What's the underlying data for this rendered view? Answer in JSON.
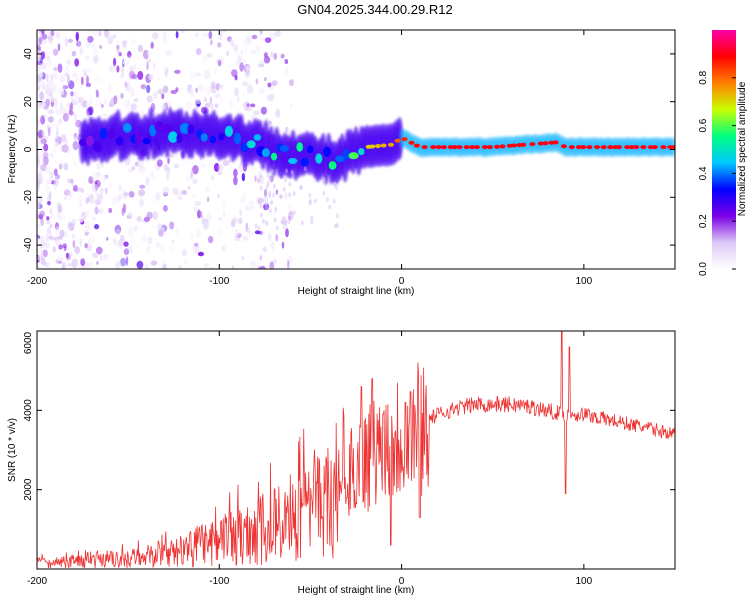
{
  "title": "GN04.2025.344.00.29.R12",
  "chart_data": [
    {
      "type": "heatmap",
      "xlabel": "Height of straight line (km)",
      "ylabel": "Frequency (Hz)",
      "xlim": [
        -200,
        150
      ],
      "ylim": [
        -50,
        50
      ],
      "xticks": [
        -200,
        -100,
        0,
        100
      ],
      "yticks": [
        -40,
        -20,
        0,
        20,
        40
      ],
      "colorbar": {
        "label": "Normalized spectral amplitude",
        "range": [
          0,
          1
        ],
        "ticks": [
          "0.0",
          "0.2",
          "0.4",
          "0.6",
          "0.8"
        ],
        "tick_values": [
          0.0,
          0.2,
          0.4,
          0.6,
          0.8
        ],
        "colormap": [
          "#ffffff",
          "#dcc8f5",
          "#7b00e6",
          "#0000ff",
          "#00c8ff",
          "#00ff80",
          "#c8ff00",
          "#ff8000",
          "#ff0000",
          "#ff00aa"
        ]
      },
      "main_trace": [
        {
          "x": -170,
          "y": 4,
          "amp": 0.3
        },
        {
          "x": -150,
          "y": 6,
          "amp": 0.33
        },
        {
          "x": -130,
          "y": 7,
          "amp": 0.35
        },
        {
          "x": -110,
          "y": 7,
          "amp": 0.38
        },
        {
          "x": -90,
          "y": 5,
          "amp": 0.4
        },
        {
          "x": -70,
          "y": 0,
          "amp": 0.42
        },
        {
          "x": -50,
          "y": -3,
          "amp": 0.45
        },
        {
          "x": -35,
          "y": -5,
          "amp": 0.45
        },
        {
          "x": -28,
          "y": -2,
          "amp": 0.5
        },
        {
          "x": -20,
          "y": 1,
          "amp": 0.7
        },
        {
          "x": -5,
          "y": 2,
          "amp": 0.75
        },
        {
          "x": 0,
          "y": 5,
          "amp": 0.85
        },
        {
          "x": 10,
          "y": 1,
          "amp": 0.9
        },
        {
          "x": 50,
          "y": 1,
          "amp": 0.9
        },
        {
          "x": 85,
          "y": 3,
          "amp": 0.9
        },
        {
          "x": 90,
          "y": 1,
          "amp": 0.9
        },
        {
          "x": 150,
          "y": 1,
          "amp": 0.9
        }
      ]
    },
    {
      "type": "line",
      "xlabel": "Height of straight line (km)",
      "ylabel": "SNR (10 * v/v)",
      "xlim": [
        -200,
        150
      ],
      "ylim": [
        0,
        6000
      ],
      "xticks": [
        -200,
        -100,
        0,
        100
      ],
      "yticks": [
        2000,
        4000,
        6000
      ],
      "color": "#ee3333",
      "trend": {
        "x": [
          -200,
          -150,
          -120,
          -100,
          -80,
          -60,
          -50,
          -40,
          -30,
          -20,
          -10,
          0,
          10,
          20,
          30,
          40,
          50,
          60,
          70,
          80,
          85,
          90,
          95,
          100,
          110,
          120,
          130,
          140,
          150
        ],
        "y": [
          150,
          250,
          450,
          700,
          950,
          1200,
          1500,
          1900,
          2300,
          2800,
          3100,
          3400,
          3650,
          3900,
          4050,
          4150,
          4150,
          4150,
          4100,
          4000,
          3950,
          3900,
          3900,
          3900,
          3800,
          3700,
          3600,
          3500,
          3400
        ]
      },
      "spikes": [
        {
          "x": -30,
          "y": 1800
        },
        {
          "x": -22,
          "y": 4600
        },
        {
          "x": -16,
          "y": 4800
        },
        {
          "x": -10,
          "y": 3900
        },
        {
          "x": -6,
          "y": 600
        },
        {
          "x": 2,
          "y": 4200
        },
        {
          "x": 10,
          "y": 1300
        },
        {
          "x": 88,
          "y": 6000
        },
        {
          "x": 90,
          "y": 1900
        },
        {
          "x": 92,
          "y": 5600
        }
      ]
    }
  ]
}
